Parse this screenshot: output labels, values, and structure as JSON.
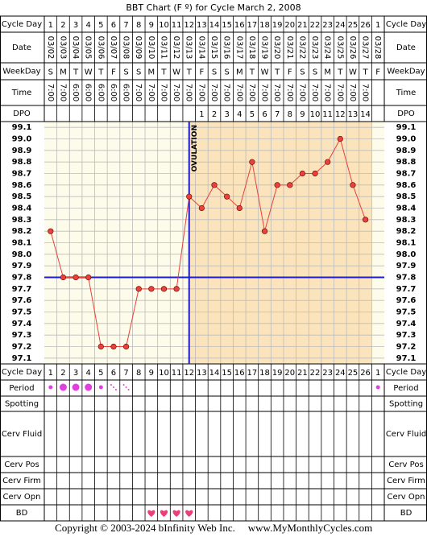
{
  "chart_data": {
    "type": "line",
    "title": "BBT Chart (F º) for Cycle March 2, 2008",
    "row_labels": {
      "cycle_day": "Cycle Day",
      "date": "Date",
      "weekday": "WeekDay",
      "time": "Time",
      "dpo": "DPO",
      "period": "Period",
      "spotting": "Spotting",
      "cerv_fluid": "Cerv Fluid",
      "cerv_pos": "Cerv Pos",
      "cerv_firm": "Cerv Firm",
      "cerv_opn": "Cerv Opn",
      "bd": "BD"
    },
    "categories": [
      1,
      2,
      3,
      4,
      5,
      6,
      7,
      8,
      9,
      10,
      11,
      12,
      13,
      14,
      15,
      16,
      17,
      18,
      19,
      20,
      21,
      22,
      23,
      24,
      25,
      26,
      1
    ],
    "dates": [
      "03/02",
      "03/03",
      "03/04",
      "03/05",
      "03/06",
      "03/07",
      "03/08",
      "03/09",
      "03/10",
      "03/11",
      "03/12",
      "03/13",
      "03/14",
      "03/15",
      "03/16",
      "03/17",
      "03/18",
      "03/19",
      "03/20",
      "03/21",
      "03/22",
      "03/23",
      "03/24",
      "03/25",
      "03/26",
      "03/27",
      "03/28"
    ],
    "weekdays": [
      "S",
      "M",
      "T",
      "W",
      "T",
      "F",
      "S",
      "S",
      "M",
      "T",
      "W",
      "T",
      "F",
      "S",
      "S",
      "M",
      "T",
      "W",
      "T",
      "F",
      "S",
      "S",
      "M",
      "T",
      "W",
      "T",
      "F"
    ],
    "times": [
      "7:00",
      "7:00",
      "6:00",
      "6:00",
      "6:00",
      "6:00",
      "6:00",
      "7:00",
      "7:00",
      "7:00",
      "7:00",
      "7:00",
      "7:00",
      "7:00",
      "7:00",
      "7:00",
      "7:00",
      "7:00",
      "7:00",
      "7:00",
      "7:00",
      "7:00",
      "7:00",
      "7:00",
      "7:00",
      "7:00",
      null
    ],
    "dpo": [
      null,
      null,
      null,
      null,
      null,
      null,
      null,
      null,
      null,
      null,
      null,
      null,
      1,
      2,
      3,
      4,
      5,
      6,
      7,
      8,
      9,
      10,
      11,
      12,
      13,
      14,
      null
    ],
    "values": [
      98.2,
      97.8,
      97.8,
      97.8,
      97.2,
      97.2,
      97.2,
      97.7,
      97.7,
      97.7,
      97.7,
      98.5,
      98.4,
      98.6,
      98.5,
      98.4,
      98.8,
      98.2,
      98.6,
      98.6,
      98.7,
      98.7,
      98.8,
      99.0,
      98.6,
      98.3,
      null
    ],
    "color": "#e8423c",
    "ylim": [
      97.05,
      99.15
    ],
    "yticks": [
      99.1,
      {
        "value": 99.0,
        "label": "99.0"
      },
      98.9,
      98.8,
      98.7,
      98.6,
      98.5,
      98.4,
      98.3,
      98.2,
      98.1,
      {
        "value": 98.0,
        "label": "98.0"
      },
      97.9,
      97.8,
      97.7,
      97.6,
      97.5,
      97.4,
      97.3,
      97.2,
      97.1
    ],
    "grid": true,
    "coverline": 97.8,
    "ovulation_day": 12,
    "ovulation_label": "OVULATION",
    "period": [
      "light",
      "medium",
      "medium",
      "medium",
      "light",
      "spotting",
      "spotting",
      null,
      null,
      null,
      null,
      null,
      null,
      null,
      null,
      null,
      null,
      null,
      null,
      null,
      null,
      null,
      null,
      null,
      null,
      null,
      "light"
    ],
    "bd": [
      false,
      false,
      false,
      false,
      false,
      false,
      false,
      false,
      true,
      true,
      true,
      true,
      false,
      false,
      false,
      false,
      false,
      false,
      false,
      false,
      false,
      false,
      false,
      false,
      false,
      false,
      false
    ],
    "copyright": "Copyright © 2003-2024 bInfinity Web Inc.",
    "website": "www.MyMonthlyCycles.com"
  }
}
